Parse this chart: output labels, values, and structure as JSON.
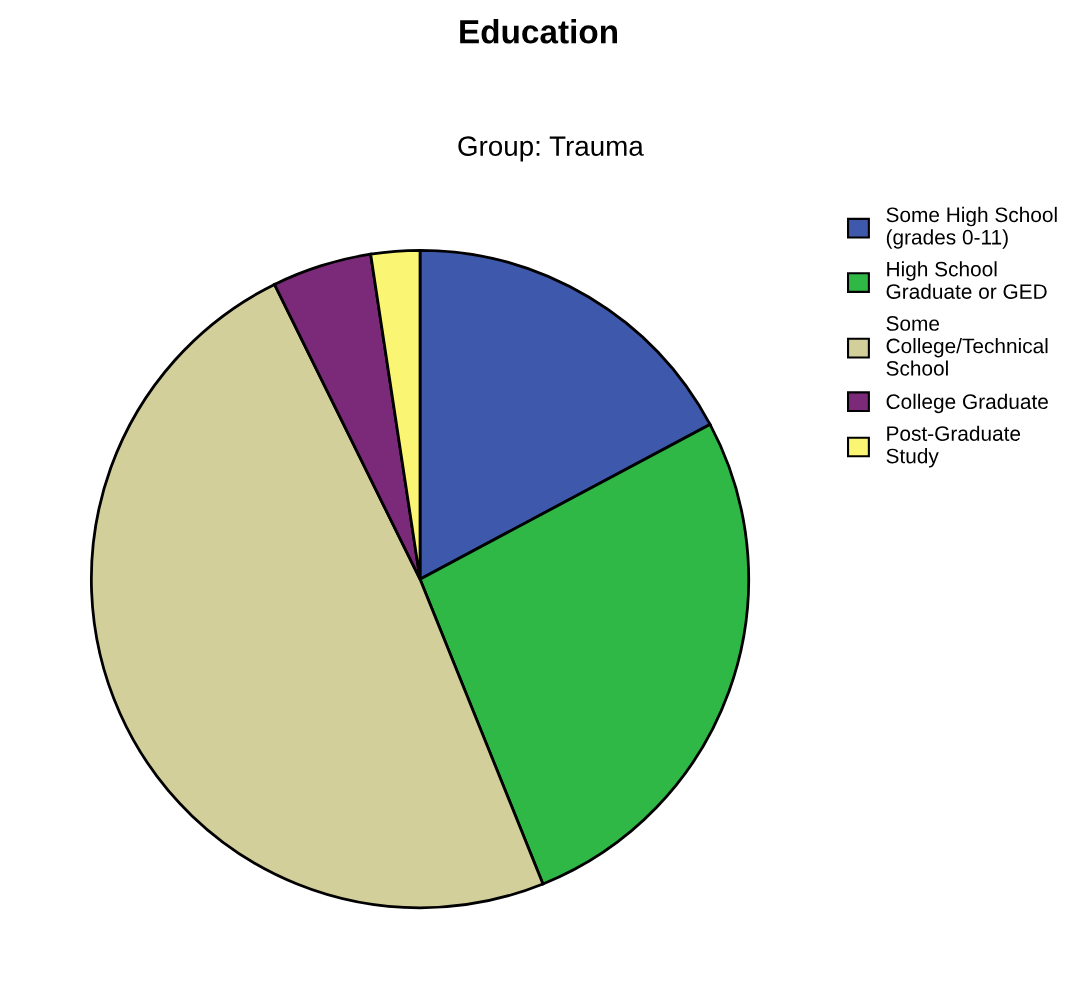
{
  "chart_data": {
    "type": "pie",
    "title": "Education",
    "subtitle": "Group: Trauma",
    "categories": [
      "Some High School\n(grades 0-11)",
      "High School\nGraduate or GED",
      "Some\nCollege/Technical\nSchool",
      "College Graduate",
      "Post-Graduate\nStudy"
    ],
    "values": [
      17.2,
      26.7,
      48.8,
      4.9,
      2.4
    ],
    "colors": [
      "#3e59ab",
      "#30b847",
      "#d3cf9a",
      "#7b2a7a",
      "#faf673"
    ],
    "legend": "right"
  }
}
